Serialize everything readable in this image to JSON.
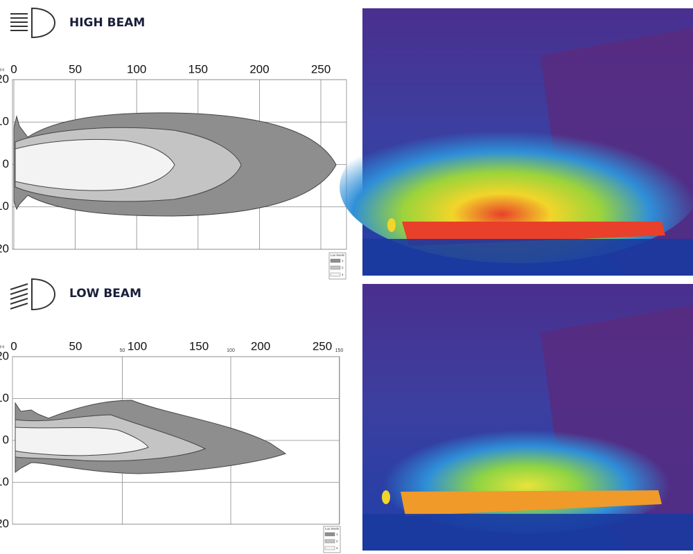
{
  "panels": [
    {
      "title": "HIGH BEAM",
      "unit": "[m]",
      "x_ticks": [
        0,
        50,
        100,
        150,
        200,
        250
      ],
      "y_ticks": [
        20,
        10,
        0,
        10,
        20
      ],
      "legend": {
        "title": "Lux levels",
        "levels": [
          1,
          2,
          4
        ]
      }
    },
    {
      "title": "LOW BEAM",
      "unit": "[m]",
      "x_ticks": [
        0,
        50,
        100,
        150,
        200,
        250
      ],
      "secondary_x_ticks": [
        50,
        100,
        150
      ],
      "y_ticks": [
        20,
        10,
        0,
        10,
        20
      ],
      "legend": {
        "title": "Lux levels",
        "levels": [
          1,
          2,
          4
        ]
      }
    }
  ]
}
